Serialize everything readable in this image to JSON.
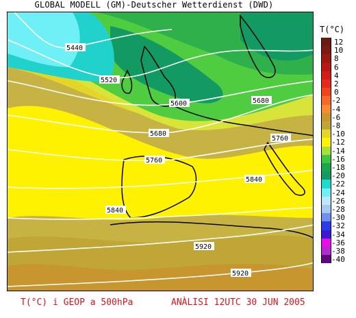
{
  "header": {
    "title": "GLOBAL MODELL (GM)-Deutscher Wetterdienst (DWD)"
  },
  "legend": {
    "title": "T(°C)",
    "entries": [
      {
        "label": "12",
        "color": "#6b1a10"
      },
      {
        "label": "10",
        "color": "#7a1c12"
      },
      {
        "label": "8",
        "color": "#9a1a10"
      },
      {
        "label": "6",
        "color": "#b81810"
      },
      {
        "label": "4",
        "color": "#d21c14"
      },
      {
        "label": "2",
        "color": "#e52a1a"
      },
      {
        "label": "0",
        "color": "#f0451c"
      },
      {
        "label": "-2",
        "color": "#f56a28"
      },
      {
        "label": "-4",
        "color": "#f98a32"
      },
      {
        "label": "-6",
        "color": "#c7962e"
      },
      {
        "label": "-8",
        "color": "#bfa636"
      },
      {
        "label": "-10",
        "color": "#e4d628"
      },
      {
        "label": "-12",
        "color": "#fff200"
      },
      {
        "label": "-14",
        "color": "#a8e03a"
      },
      {
        "label": "-16",
        "color": "#3fc63e"
      },
      {
        "label": "-18",
        "color": "#1aa64a"
      },
      {
        "label": "-20",
        "color": "#139a62"
      },
      {
        "label": "-22",
        "color": "#1adcd0"
      },
      {
        "label": "-24",
        "color": "#6ff0f6"
      },
      {
        "label": "-26",
        "color": "#bfe6fa"
      },
      {
        "label": "-28",
        "color": "#a6c8f4"
      },
      {
        "label": "-30",
        "color": "#6e90ee"
      },
      {
        "label": "-32",
        "color": "#2e3ce8"
      },
      {
        "label": "-34",
        "color": "#3a1ad0"
      },
      {
        "label": "-36",
        "color": "#e80ee6"
      },
      {
        "label": "-38",
        "color": "#b22ad0"
      },
      {
        "label": "-40",
        "color": "#5a0a7a"
      }
    ]
  },
  "map": {
    "isolines": [
      "5440",
      "5520",
      "5600",
      "5680",
      "5680",
      "5760",
      "5760",
      "5840",
      "5840",
      "5920",
      "5920"
    ]
  },
  "footer": {
    "left": "T(°C) i GEOP a 500hPa",
    "right": "ANÀLISI 12UTC 30 JUN 2005"
  }
}
